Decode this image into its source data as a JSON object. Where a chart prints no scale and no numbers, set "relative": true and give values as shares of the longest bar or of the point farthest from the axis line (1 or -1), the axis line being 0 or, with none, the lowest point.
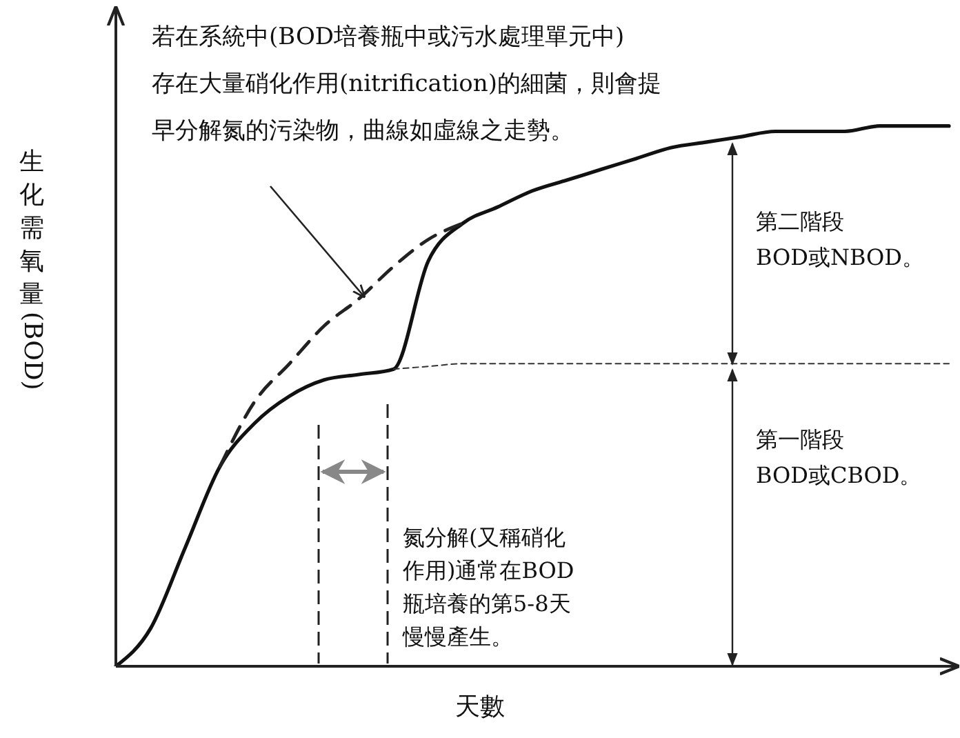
{
  "chart_data": {
    "type": "line",
    "relative": true,
    "ylabel": "生化需氧量(BOD)",
    "xlabel": "天數",
    "legend": false,
    "grid": false,
    "marker": "none",
    "categories": [
      null,
      null,
      null,
      null,
      null,
      null,
      null,
      null,
      null,
      null,
      null,
      null,
      null,
      null,
      null,
      null,
      null,
      null,
      null,
      null,
      null,
      null,
      null,
      null,
      null
    ],
    "series": [
      {
        "color": "#111111",
        "line_style": "solid",
        "values": [
          0,
          0.07,
          0.22,
          0.37,
          0.45,
          0.5,
          0.53,
          0.54,
          0.55,
          0.75,
          0.82,
          0.85,
          0.88,
          0.9,
          0.92,
          0.94,
          0.96,
          0.97,
          0.98,
          0.99,
          0.99,
          0.99,
          1,
          1,
          1
        ]
      },
      {
        "color": "#222222",
        "line_style": "dashed",
        "values": [
          null,
          null,
          null,
          0.37,
          0.49,
          0.56,
          0.63,
          0.68,
          0.74,
          0.79,
          0.82,
          null,
          null,
          null,
          null,
          null,
          null,
          null,
          null,
          null,
          null,
          null,
          null,
          null,
          null
        ]
      },
      {
        "color": "#333333",
        "line_style": "dotted",
        "values": [
          null,
          null,
          null,
          null,
          null,
          null,
          null,
          null,
          0.55,
          0.555,
          0.56,
          0.56,
          0.56,
          0.56,
          0.56,
          0.56,
          0.56,
          0.56,
          0.56,
          0.56,
          0.56,
          0.56,
          0.56,
          0.56,
          0.56
        ]
      }
    ],
    "annotations": [
      "若在系統中(BOD培養瓶中或污水處理單元中)",
      "存在大量硝化作用(nitrification)的細菌，則會提早分解氮的污染物，曲線如虛線之走勢。",
      "第二階段\nBOD或NBOD。",
      "第一階段\nBOD或CBOD。",
      "氮分解(又稱硝化作用)通常在BOD瓶培養的第5-8天慢慢產生。"
    ]
  }
}
